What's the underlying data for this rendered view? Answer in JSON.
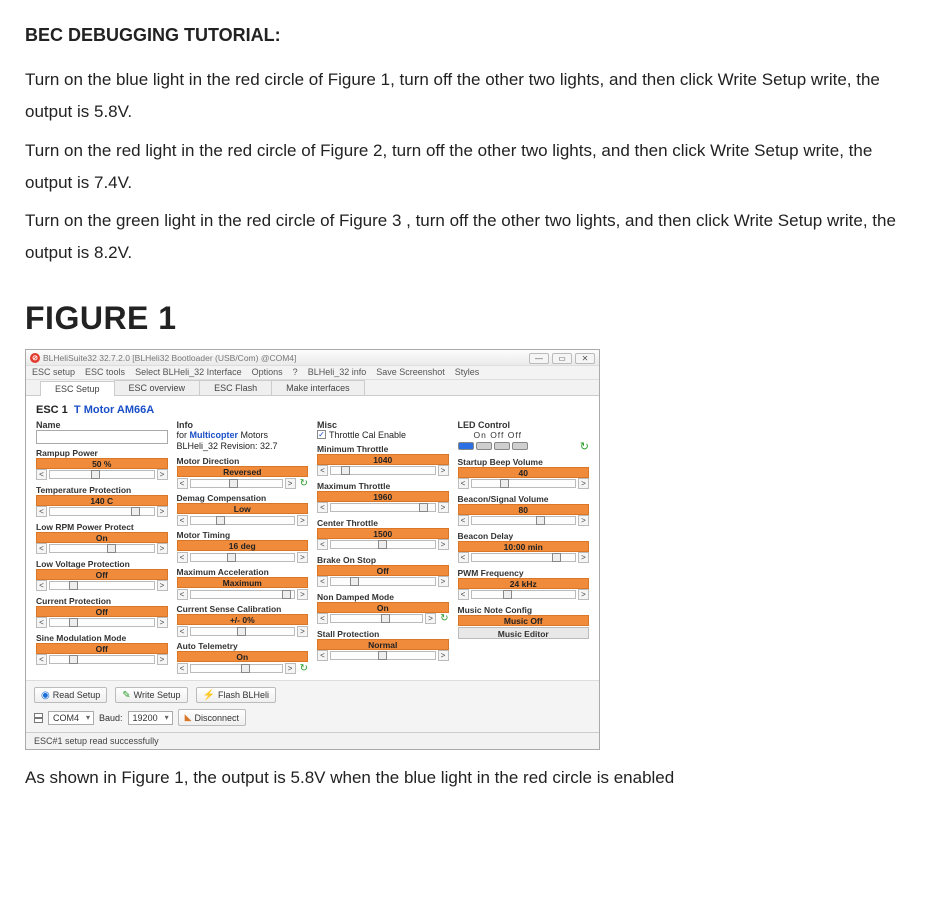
{
  "tutorial": {
    "title": "BEC DEBUGGING TUTORIAL:",
    "p1": "Turn on the blue light in the red circle of Figure 1, turn off the other two lights, and then click Write Setup write, the output is 5.8V.",
    "p2": "Turn on the red light in the red circle of Figure 2, turn off the other two lights, and then click Write Setup write, the output is 7.4V.",
    "p3": "Turn on the green light in the red circle of Figure 3 , turn off the other two lights, and then click Write Setup write, the output is 8.2V.",
    "figure_title": "FIGURE 1",
    "caption": "As shown in Figure 1, the output is 5.8V when the blue light in the red circle is enabled"
  },
  "window": {
    "title": "BLHeliSuite32 32.7.2.0  [BLHeli32 Bootloader (USB/Com) @COM4]",
    "menu": [
      "ESC setup",
      "ESC tools",
      "Select BLHeli_32 Interface",
      "Options",
      "?",
      "BLHeli_32 info",
      "Save Screenshot",
      "Styles"
    ],
    "tabs": [
      "ESC Setup",
      "ESC overview",
      "ESC Flash",
      "Make interfaces"
    ],
    "esc_label": "ESC 1",
    "esc_model": "T Motor AM66A",
    "headers": {
      "name": "Name",
      "info": "Info",
      "misc": "Misc",
      "led": "LED Control"
    },
    "info": {
      "line1_pre": "for ",
      "line1_em": "Multicopter",
      "line1_post": " Motors",
      "line2": "BLHeli_32 Revision:   32.7"
    },
    "misc": {
      "throttle_cal": "Throttle Cal Enable"
    },
    "led": {
      "labels": "On  Off  Off"
    },
    "col1": [
      {
        "label": "Rampup Power",
        "value": "50 %",
        "thumb": 40
      },
      {
        "label": "Temperature Protection",
        "value": "140 C",
        "thumb": 78
      },
      {
        "label": "Low RPM Power Protect",
        "value": "On",
        "thumb": 55
      },
      {
        "label": "Low Voltage Protection",
        "value": "Off",
        "thumb": 18
      },
      {
        "label": "Current Protection",
        "value": "Off",
        "thumb": 18
      },
      {
        "label": "Sine Modulation Mode",
        "value": "Off",
        "thumb": 18
      }
    ],
    "col2": [
      {
        "label": "Motor Direction",
        "value": "Reversed",
        "thumb": 42,
        "extra_icon": true
      },
      {
        "label": "Demag Compensation",
        "value": "Low",
        "thumb": 25
      },
      {
        "label": "Motor Timing",
        "value": "16 deg",
        "thumb": 35
      },
      {
        "label": "Maximum Acceleration",
        "value": "Maximum",
        "thumb": 88
      },
      {
        "label": "Current Sense Calibration",
        "value": "+/- 0%",
        "thumb": 45
      },
      {
        "label": "Auto Telemetry",
        "value": "On",
        "thumb": 55,
        "extra_icon": true
      }
    ],
    "col3": [
      {
        "label": "Minimum Throttle",
        "value": "1040",
        "thumb": 10
      },
      {
        "label": "Maximum Throttle",
        "value": "1960",
        "thumb": 85
      },
      {
        "label": "Center Throttle",
        "value": "1500",
        "thumb": 45
      },
      {
        "label": "Brake On Stop",
        "value": "Off",
        "thumb": 18
      },
      {
        "label": "Non Damped Mode",
        "value": "On",
        "thumb": 55,
        "extra_icon": true
      },
      {
        "label": "Stall Protection",
        "value": "Normal",
        "thumb": 45
      }
    ],
    "col4": [
      {
        "label": "Startup Beep Volume",
        "value": "40",
        "thumb": 28
      },
      {
        "label": "Beacon/Signal Volume",
        "value": "80",
        "thumb": 62
      },
      {
        "label": "Beacon Delay",
        "value": "10:00 min",
        "thumb": 78
      },
      {
        "label": "PWM Frequency",
        "value": "24 kHz",
        "thumb": 30
      },
      {
        "label": "Music Note Config",
        "value": "Music Off",
        "thumb": 0,
        "music": true
      }
    ],
    "music_editor": "Music Editor",
    "buttons": {
      "read": "Read Setup",
      "write": "Write Setup",
      "flash": "Flash BLHeli"
    },
    "conn": {
      "port": "COM4",
      "baud_label": "Baud:",
      "baud": "19200",
      "disconnect": "Disconnect"
    },
    "status": "ESC#1 setup read successfully"
  },
  "colors": {
    "param_bg": "#f08b3c",
    "led_blue": "#2b6fe3",
    "led_off": "#cfcfcf"
  }
}
